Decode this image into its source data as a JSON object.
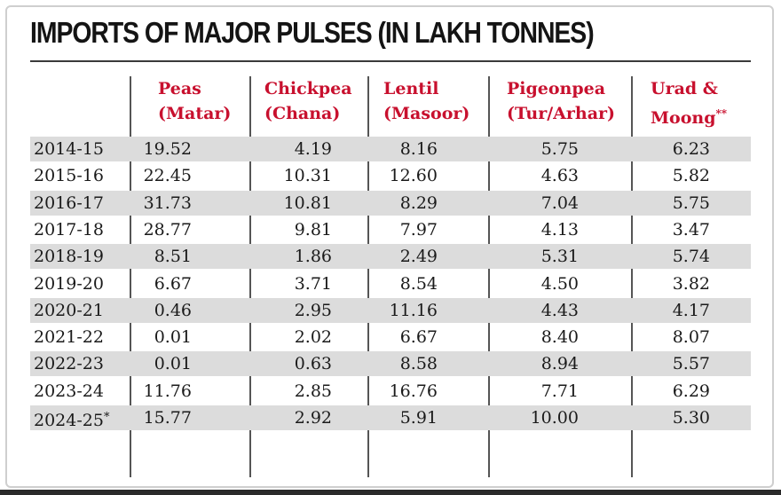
{
  "chart_data": {
    "type": "table",
    "title": "IMPORTS OF MAJOR PULSES (IN LAKH TONNES)",
    "columns": [
      {
        "line1": "Peas",
        "line2": "(Matar)",
        "sup": ""
      },
      {
        "line1": "Chickpea",
        "line2": "(Chana)",
        "sup": ""
      },
      {
        "line1": "Lentil",
        "line2": "(Masoor)",
        "sup": ""
      },
      {
        "line1": "Pigeonpea",
        "line2": "(Tur/Arhar)",
        "sup": ""
      },
      {
        "line1": "Urad &",
        "line2": "Moong",
        "sup": "**"
      }
    ],
    "rows": [
      {
        "year": "2014-15",
        "star": "",
        "values": [
          "19.52",
          "4.19",
          "8.16",
          "5.75",
          "6.23"
        ]
      },
      {
        "year": "2015-16",
        "star": "",
        "values": [
          "22.45",
          "10.31",
          "12.60",
          "4.63",
          "5.82"
        ]
      },
      {
        "year": "2016-17",
        "star": "",
        "values": [
          "31.73",
          "10.81",
          "8.29",
          "7.04",
          "5.75"
        ]
      },
      {
        "year": "2017-18",
        "star": "",
        "values": [
          "28.77",
          "9.81",
          "7.97",
          "4.13",
          "3.47"
        ]
      },
      {
        "year": "2018-19",
        "star": "",
        "values": [
          "8.51",
          "1.86",
          "2.49",
          "5.31",
          "5.74"
        ]
      },
      {
        "year": "2019-20",
        "star": "",
        "values": [
          "6.67",
          "3.71",
          "8.54",
          "4.50",
          "3.82"
        ]
      },
      {
        "year": "2020-21",
        "star": "",
        "values": [
          "0.46",
          "2.95",
          "11.16",
          "4.43",
          "4.17"
        ]
      },
      {
        "year": "2021-22",
        "star": "",
        "values": [
          "0.01",
          "2.02",
          "6.67",
          "8.40",
          "8.07"
        ]
      },
      {
        "year": "2022-23",
        "star": "",
        "values": [
          "0.01",
          "0.63",
          "8.58",
          "8.94",
          "5.57"
        ]
      },
      {
        "year": "2023-24",
        "star": "",
        "values": [
          "11.76",
          "2.85",
          "16.76",
          "7.71",
          "6.29"
        ]
      },
      {
        "year": "2024-25",
        "star": "*",
        "values": [
          "15.77",
          "2.92",
          "5.91",
          "10.00",
          "5.30"
        ]
      }
    ],
    "colors": {
      "header": "#c8102e",
      "shade": "#dcdcdc"
    }
  }
}
